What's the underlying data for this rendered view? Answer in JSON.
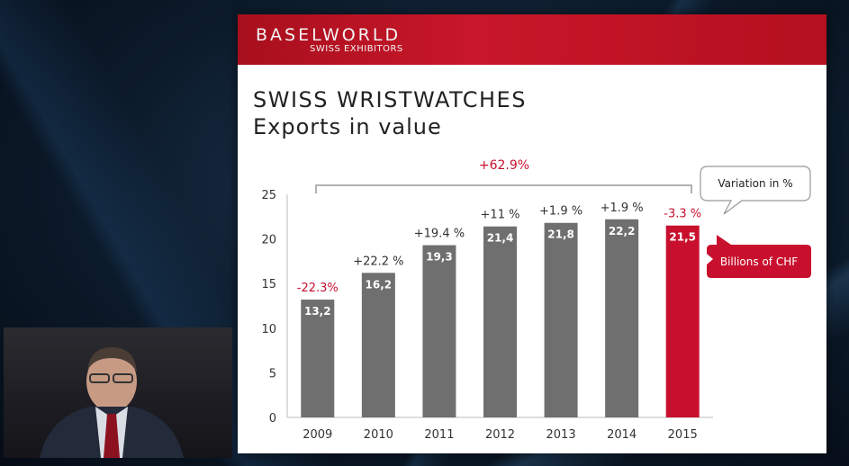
{
  "header": {
    "brand": "BASELWORLD",
    "brand_sub": "SWISS EXHIBITORS"
  },
  "slide": {
    "title": "SWISS WRISTWATCHES",
    "subtitle": "Exports in value"
  },
  "chart_data": {
    "type": "bar",
    "categories": [
      "2009",
      "2010",
      "2011",
      "2012",
      "2013",
      "2014",
      "2015"
    ],
    "values": [
      13.2,
      16.2,
      19.3,
      21.4,
      21.8,
      22.2,
      21.5
    ],
    "data_labels": [
      "13,2",
      "16,2",
      "19,3",
      "21,4",
      "21,8",
      "22,2",
      "21,5"
    ],
    "variation_labels": [
      "-22.3%",
      "+22.2 %",
      "+19.4 %",
      "+11 %",
      "+1.9 %",
      "+1.9 %",
      "-3.3 %"
    ],
    "overall_variation": "+62.9%",
    "ylim": [
      0,
      25
    ],
    "yticks": [
      "0",
      "5",
      "10",
      "15",
      "20",
      "25"
    ],
    "grid": false,
    "callouts": {
      "variation": "Variation in %",
      "unit": "Billions of CHF"
    },
    "colors": {
      "bar": "#6f6f6f",
      "highlight": "#c8102e",
      "negative_text": "#c8102e",
      "positive_text": "#333333"
    }
  }
}
